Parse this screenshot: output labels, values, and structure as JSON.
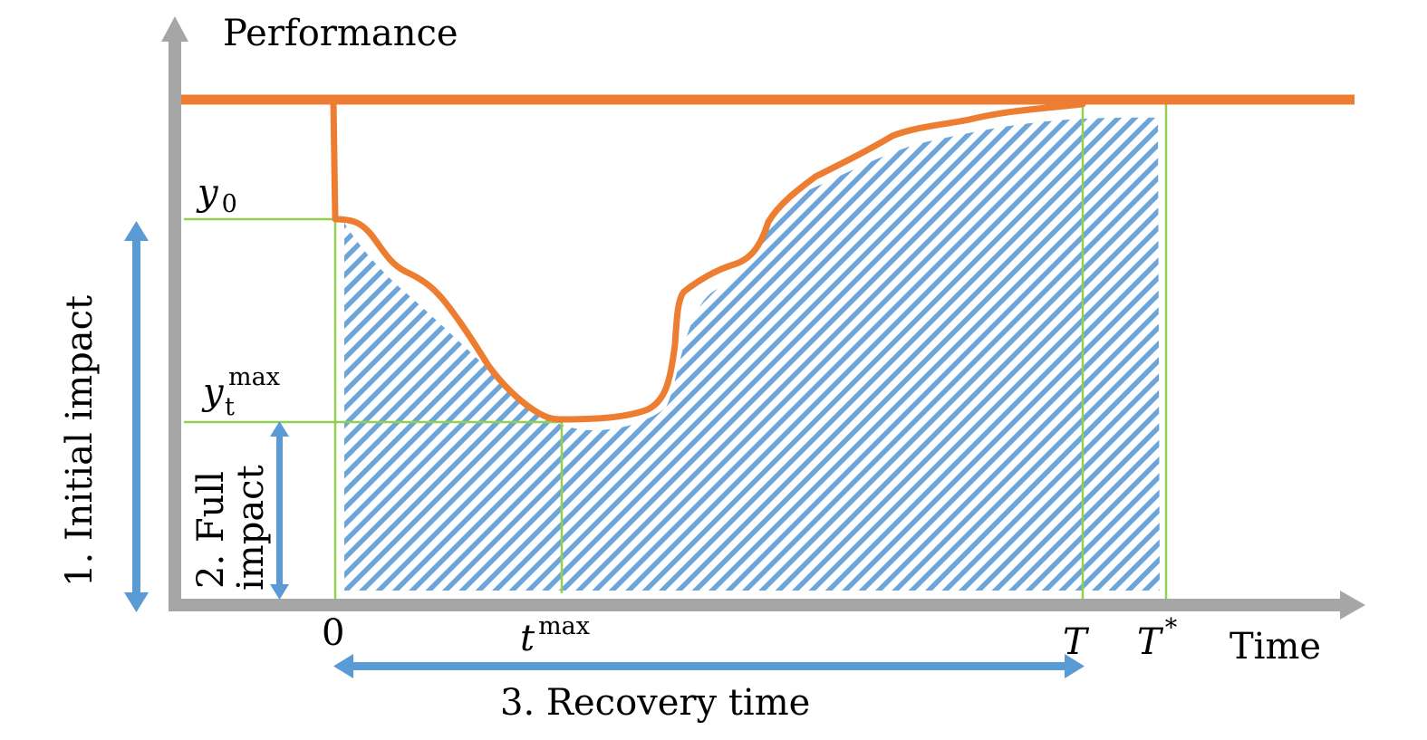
{
  "axes": {
    "y_label": "Performance",
    "x_label": "Time"
  },
  "ticks": {
    "zero": "0",
    "t_max": "t",
    "t_max_sup": "max",
    "T": "T",
    "T_star": "T",
    "T_star_sup": "*"
  },
  "levels": {
    "y0": "y",
    "y0_sub": "0",
    "yt": "y",
    "yt_sub": "t",
    "yt_sup": "max"
  },
  "annotations": {
    "initial_impact": "1. Initial impact",
    "full_impact_line1": "2. Full",
    "full_impact_line2": "impact",
    "recovery_time": "3. Recovery time"
  },
  "colors": {
    "performance_curve": "#ED7D31",
    "shading": "#5B9BD5",
    "guide_lines": "#92D050",
    "axes": "#A6A6A6",
    "arrows": "#5B9BD5"
  }
}
